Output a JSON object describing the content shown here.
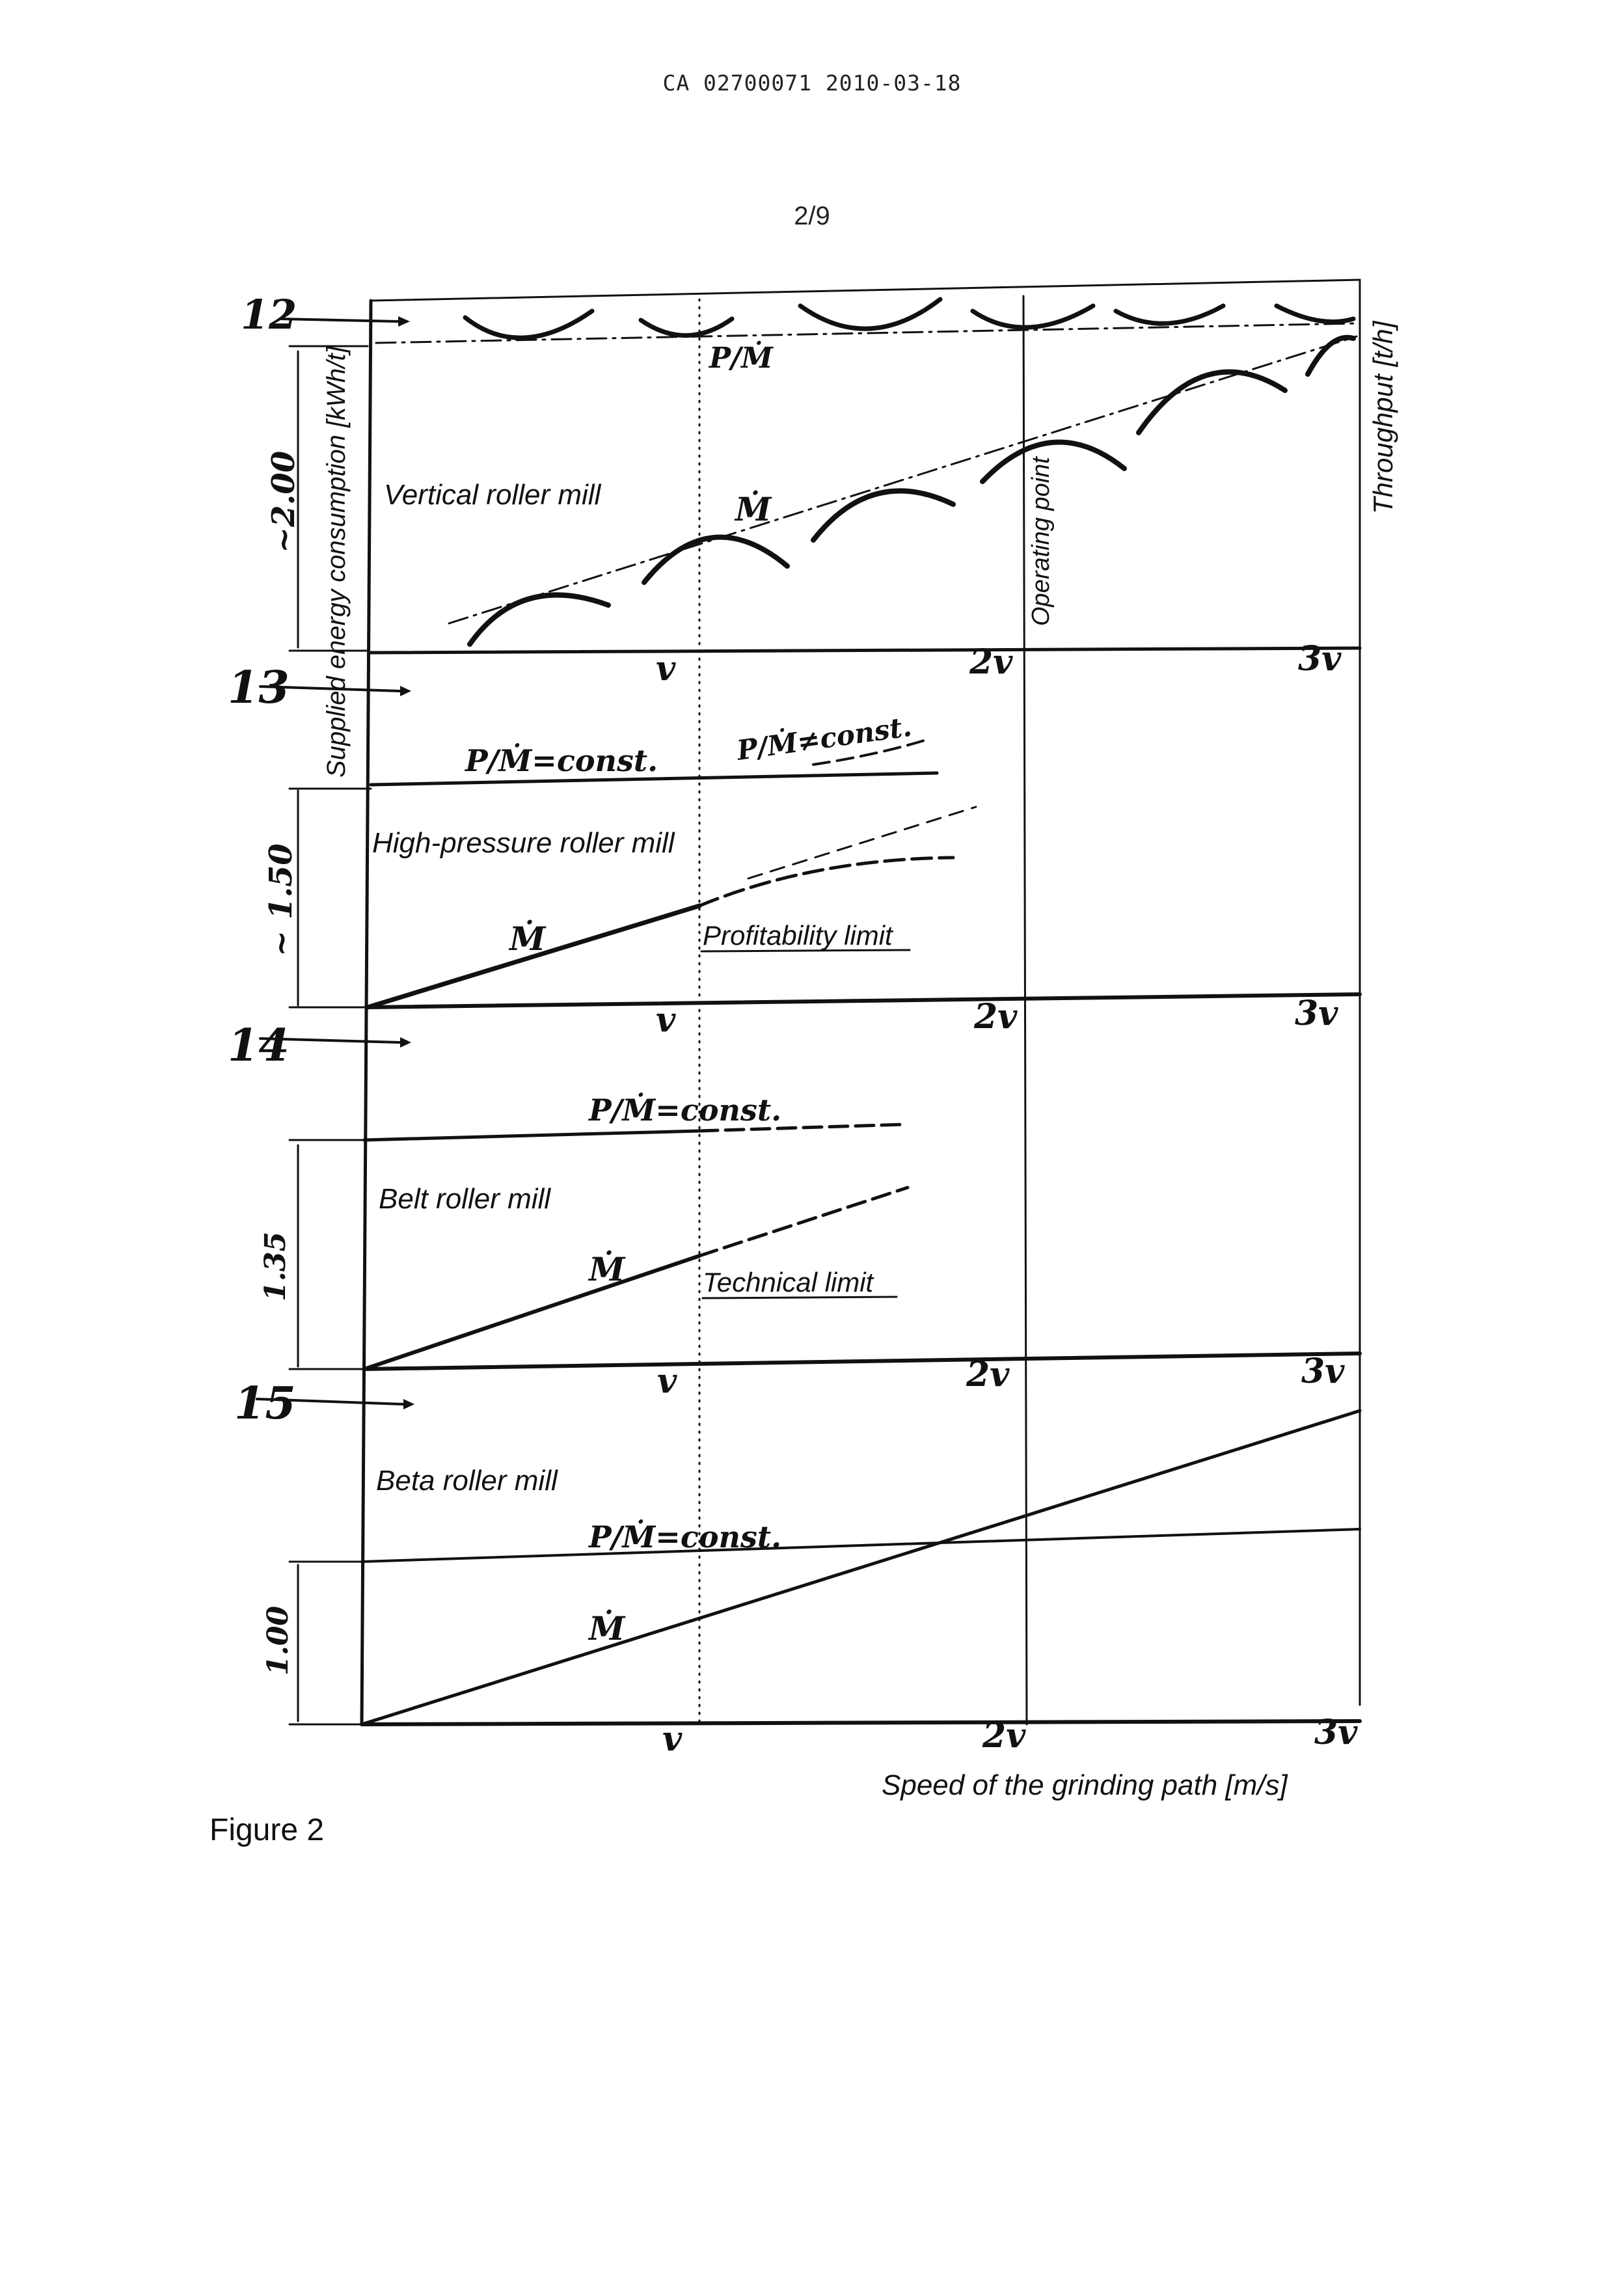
{
  "header": {
    "doc_id": "CA 02700071 2010-03-18",
    "page": "2/9"
  },
  "figure": {
    "caption": "Figure 2",
    "x_axis_label": "Speed of the grinding path [m/s]",
    "y_left_label": "Supplied energy consumption [kWh/t]",
    "y_right_label": "Throughput [t/h]",
    "operating_point_label": "Operating point",
    "speed_ticks": [
      "v",
      "2v",
      "3v"
    ],
    "panels": [
      {
        "id": "12",
        "title": "Vertical roller mill",
        "dimension": "~2.00",
        "energy_label": "P/Ṁ",
        "throughput_label": "Ṁ",
        "limit_label": ""
      },
      {
        "id": "13",
        "title": "High-pressure roller mill",
        "dimension": "~ 1.50",
        "energy_label": "P/Ṁ=const.",
        "energy_label_2": "P/Ṁ≠const.",
        "throughput_label": "Ṁ",
        "limit_label": "Profitability limit"
      },
      {
        "id": "14",
        "title": "Belt roller mill",
        "dimension": "1.35",
        "energy_label": "P/Ṁ=const.",
        "throughput_label": "Ṁ",
        "limit_label": "Technical limit"
      },
      {
        "id": "15",
        "title": "Beta roller mill",
        "dimension": "1.00",
        "energy_label": "P/Ṁ=const.",
        "throughput_label": "Ṁ",
        "limit_label": ""
      }
    ]
  }
}
